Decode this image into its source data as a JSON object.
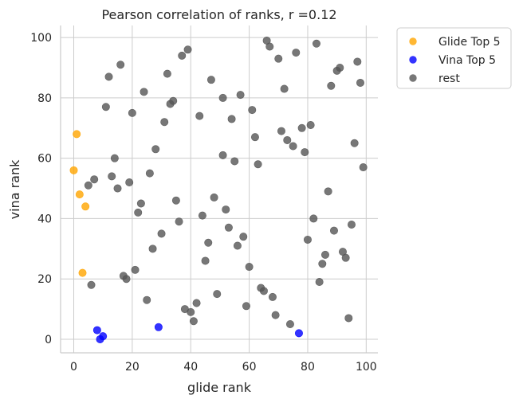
{
  "chart_data": {
    "type": "scatter",
    "title": "Pearson correlation of ranks, r =0.12",
    "xlabel": "glide rank",
    "ylabel": "vina rank",
    "xlim": [
      -4.5,
      104
    ],
    "ylim": [
      -4.5,
      104
    ],
    "xticks": [
      0,
      20,
      40,
      60,
      80,
      100
    ],
    "yticks": [
      0,
      20,
      40,
      60,
      80,
      100
    ],
    "grid": true,
    "legend_position": "outside-upper-right",
    "series": [
      {
        "name": "Glide Top 5",
        "color": "#ffa500",
        "points": [
          [
            1,
            68
          ],
          [
            0,
            56
          ],
          [
            2,
            48
          ],
          [
            4,
            44
          ],
          [
            3,
            22
          ]
        ]
      },
      {
        "name": "Vina Top 5",
        "color": "#0000ff",
        "points": [
          [
            8,
            3
          ],
          [
            9,
            0
          ],
          [
            10,
            1
          ],
          [
            29,
            4
          ],
          [
            77,
            2
          ]
        ]
      },
      {
        "name": "rest",
        "color": "#555555",
        "points": [
          [
            66,
            99
          ],
          [
            39,
            96
          ],
          [
            67,
            97
          ],
          [
            83,
            98
          ],
          [
            16,
            91
          ],
          [
            37,
            94
          ],
          [
            76,
            95
          ],
          [
            70,
            93
          ],
          [
            97,
            92
          ],
          [
            12,
            87
          ],
          [
            32,
            88
          ],
          [
            91,
            90
          ],
          [
            90,
            89
          ],
          [
            47,
            86
          ],
          [
            98,
            85
          ],
          [
            88,
            84
          ],
          [
            72,
            83
          ],
          [
            24,
            82
          ],
          [
            57,
            81
          ],
          [
            51,
            80
          ],
          [
            34,
            79
          ],
          [
            33,
            78
          ],
          [
            11,
            77
          ],
          [
            61,
            76
          ],
          [
            20,
            75
          ],
          [
            43,
            74
          ],
          [
            54,
            73
          ],
          [
            31,
            72
          ],
          [
            81,
            71
          ],
          [
            78,
            70
          ],
          [
            71,
            69
          ],
          [
            62,
            67
          ],
          [
            73,
            66
          ],
          [
            96,
            65
          ],
          [
            75,
            64
          ],
          [
            28,
            63
          ],
          [
            79,
            62
          ],
          [
            51,
            61
          ],
          [
            14,
            60
          ],
          [
            55,
            59
          ],
          [
            63,
            58
          ],
          [
            99,
            57
          ],
          [
            26,
            55
          ],
          [
            13,
            54
          ],
          [
            7,
            53
          ],
          [
            19,
            52
          ],
          [
            5,
            51
          ],
          [
            15,
            50
          ],
          [
            87,
            49
          ],
          [
            48,
            47
          ],
          [
            35,
            46
          ],
          [
            23,
            45
          ],
          [
            52,
            43
          ],
          [
            22,
            42
          ],
          [
            44,
            41
          ],
          [
            82,
            40
          ],
          [
            36,
            39
          ],
          [
            95,
            38
          ],
          [
            53,
            37
          ],
          [
            89,
            36
          ],
          [
            30,
            35
          ],
          [
            58,
            34
          ],
          [
            80,
            33
          ],
          [
            46,
            32
          ],
          [
            56,
            31
          ],
          [
            27,
            30
          ],
          [
            92,
            29
          ],
          [
            86,
            28
          ],
          [
            93,
            27
          ],
          [
            45,
            26
          ],
          [
            85,
            25
          ],
          [
            60,
            24
          ],
          [
            21,
            23
          ],
          [
            17,
            21
          ],
          [
            18,
            20
          ],
          [
            84,
            19
          ],
          [
            6,
            18
          ],
          [
            64,
            17
          ],
          [
            65,
            16
          ],
          [
            49,
            15
          ],
          [
            68,
            14
          ],
          [
            25,
            13
          ],
          [
            42,
            12
          ],
          [
            59,
            11
          ],
          [
            38,
            10
          ],
          [
            40,
            9
          ],
          [
            69,
            8
          ],
          [
            94,
            7
          ],
          [
            41,
            6
          ],
          [
            74,
            5
          ]
        ]
      }
    ]
  }
}
